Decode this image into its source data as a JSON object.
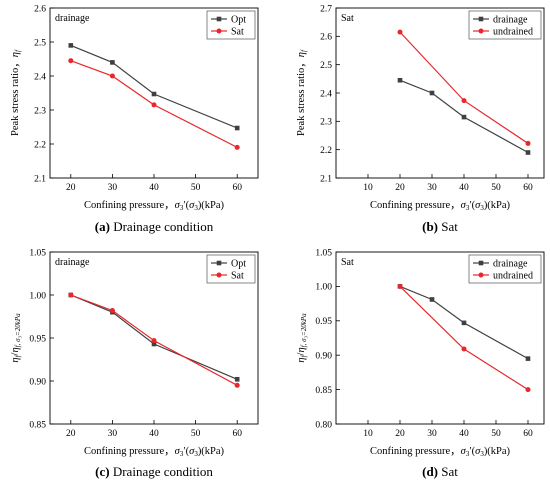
{
  "chart_data": [
    {
      "type": "line",
      "panel": "a",
      "caption_label": "(a)",
      "caption_text": "Drainage condition",
      "annotation": "drainage",
      "xlabel": "Confining pressure，σ₃′(σ₃)(kPa)",
      "ylabel": "Peak stress ratio，η_f",
      "xlim": [
        15,
        65
      ],
      "ylim": [
        2.1,
        2.6
      ],
      "x_ticks": [
        20,
        30,
        40,
        50,
        60
      ],
      "y_ticks": [
        2.1,
        2.2,
        2.3,
        2.4,
        2.5,
        2.6
      ],
      "y_decimals": 1,
      "legend_position": "top-right",
      "series": [
        {
          "name": "Opt",
          "color": "#404040",
          "marker": "square",
          "x": [
            20,
            30,
            40,
            60
          ],
          "values": [
            2.49,
            2.44,
            2.347,
            2.247
          ]
        },
        {
          "name": "Sat",
          "color": "#e8262b",
          "marker": "circle",
          "x": [
            20,
            30,
            40,
            60
          ],
          "values": [
            2.445,
            2.4,
            2.315,
            2.19
          ]
        }
      ]
    },
    {
      "type": "line",
      "panel": "b",
      "caption_label": "(b)",
      "caption_text": "Sat",
      "annotation": "Sat",
      "xlabel": "Confining pressure，σ₃′(σ₃)(kPa)",
      "ylabel": "Peak stress ratio，η_f",
      "xlim": [
        0,
        65
      ],
      "ylim": [
        2.1,
        2.7
      ],
      "x_ticks": [
        10,
        20,
        30,
        40,
        50,
        60
      ],
      "y_ticks": [
        2.1,
        2.2,
        2.3,
        2.4,
        2.5,
        2.6,
        2.7
      ],
      "y_decimals": 1,
      "legend_position": "top-right",
      "series": [
        {
          "name": "drainage",
          "color": "#404040",
          "marker": "square",
          "x": [
            20,
            30,
            40,
            60
          ],
          "values": [
            2.445,
            2.4,
            2.315,
            2.19
          ]
        },
        {
          "name": "undrained",
          "color": "#e8262b",
          "marker": "circle",
          "x": [
            20,
            40,
            60
          ],
          "values": [
            2.615,
            2.373,
            2.222
          ]
        }
      ]
    },
    {
      "type": "line",
      "panel": "c",
      "caption_label": "(c)",
      "caption_text": "Drainage condition",
      "annotation": "drainage",
      "xlabel": "Confining pressure，σ₃′(σ₃)(kPa)",
      "ylabel": "η_f/η_f,σ₃=20kPa",
      "xlim": [
        15,
        65
      ],
      "ylim": [
        0.85,
        1.05
      ],
      "x_ticks": [
        20,
        30,
        40,
        50,
        60
      ],
      "y_ticks": [
        0.85,
        0.9,
        0.95,
        1.0,
        1.05
      ],
      "y_decimals": 2,
      "legend_position": "top-right",
      "series": [
        {
          "name": "Opt",
          "color": "#404040",
          "marker": "square",
          "x": [
            20,
            30,
            40,
            60
          ],
          "values": [
            1.0,
            0.98,
            0.943,
            0.902
          ]
        },
        {
          "name": "Sat",
          "color": "#e8262b",
          "marker": "circle",
          "x": [
            20,
            30,
            40,
            60
          ],
          "values": [
            1.0,
            0.982,
            0.947,
            0.895
          ]
        }
      ]
    },
    {
      "type": "line",
      "panel": "d",
      "caption_label": "(d)",
      "caption_text": "Sat",
      "annotation": "Sat",
      "xlabel": "Confining pressure，σ₃′(σ₃)(kPa)",
      "ylabel": "η_f/η_f,σ₃=20kPa",
      "xlim": [
        0,
        65
      ],
      "ylim": [
        0.8,
        1.05
      ],
      "x_ticks": [
        10,
        20,
        30,
        40,
        50,
        60
      ],
      "y_ticks": [
        0.8,
        0.85,
        0.9,
        0.95,
        1.0,
        1.05
      ],
      "y_decimals": 2,
      "legend_position": "top-right",
      "series": [
        {
          "name": "drainage",
          "color": "#404040",
          "marker": "square",
          "x": [
            20,
            30,
            40,
            60
          ],
          "values": [
            1.0,
            0.981,
            0.947,
            0.895
          ]
        },
        {
          "name": "undrained",
          "color": "#e8262b",
          "marker": "circle",
          "x": [
            20,
            40,
            60
          ],
          "values": [
            1.0,
            0.909,
            0.85
          ]
        }
      ]
    }
  ]
}
